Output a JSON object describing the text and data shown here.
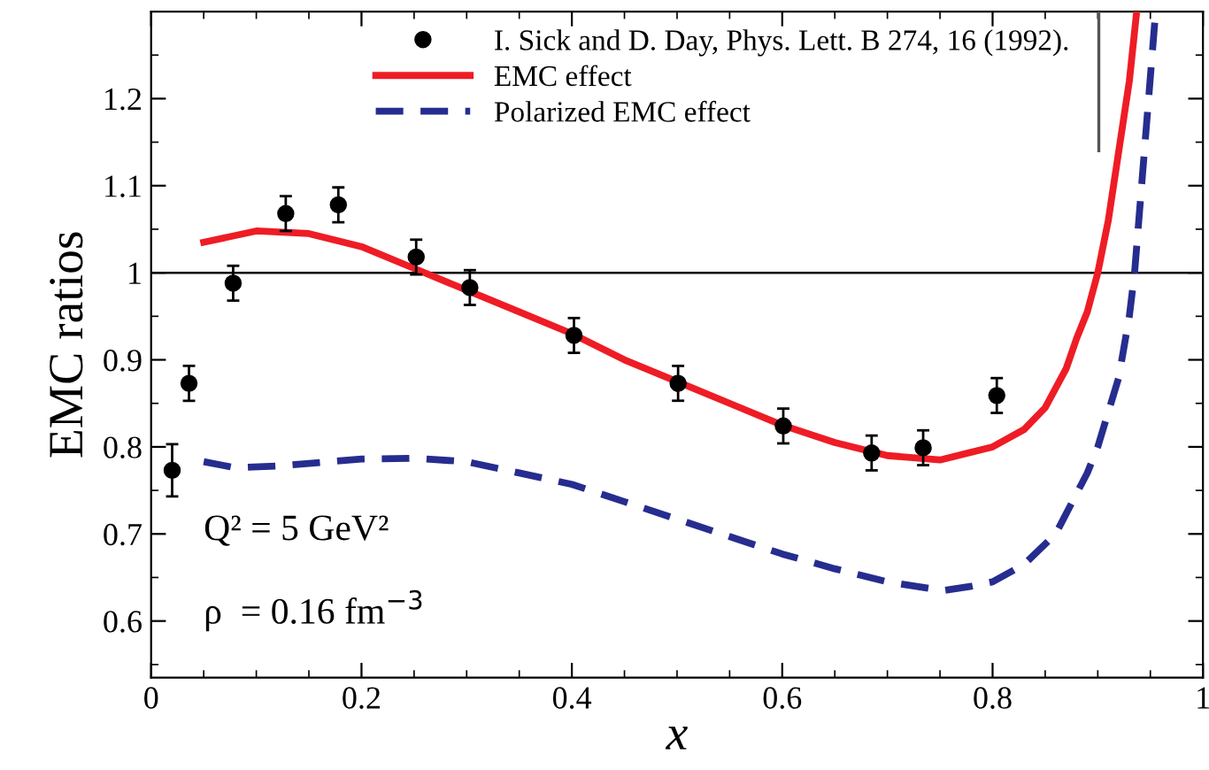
{
  "chart_data": {
    "type": "line",
    "xlabel": "x",
    "ylabel": "EMC ratios",
    "xlim": [
      0,
      1
    ],
    "ylim": [
      0.535,
      1.3
    ],
    "xticks": [
      0,
      0.2,
      0.4,
      0.6,
      0.8,
      1
    ],
    "yticks": [
      0.6,
      0.7,
      0.8,
      0.9,
      1,
      1.1,
      1.2
    ],
    "grid": false,
    "legend": "top right",
    "ref_lines": [
      {
        "axis": "y",
        "value": 1,
        "color": "#000000",
        "line_style": "solid"
      }
    ],
    "annotations": [
      "Q² = 5 GeV²",
      "ρ  = 0.16 fm$^{−3}$"
    ],
    "series": [
      {
        "name": "I. Sick and D. Day, Phys. Lett. B 274, 16 (1992).",
        "type": "scatter",
        "marker": "circle",
        "color": "#000000",
        "x": [
          0.02,
          0.036,
          0.078,
          0.128,
          0.178,
          0.252,
          0.303,
          0.402,
          0.501,
          0.601,
          0.685,
          0.734,
          0.804
        ],
        "values": [
          0.773,
          0.873,
          0.988,
          1.068,
          1.078,
          1.018,
          0.983,
          0.928,
          0.873,
          0.824,
          0.793,
          0.799,
          0.859
        ],
        "errors": [
          0.03,
          0.02,
          0.02,
          0.02,
          0.02,
          0.02,
          0.02,
          0.02,
          0.02,
          0.02,
          0.02,
          0.02,
          0.02
        ]
      },
      {
        "name": "EMC effect",
        "line_style": "solid",
        "color": "#ee1c25",
        "x": [
          0.05,
          0.1,
          0.15,
          0.2,
          0.25,
          0.3,
          0.35,
          0.4,
          0.45,
          0.5,
          0.55,
          0.6,
          0.65,
          0.7,
          0.75,
          0.8,
          0.83,
          0.85,
          0.87,
          0.88,
          0.89,
          0.9,
          0.91,
          0.92,
          0.93,
          0.937
        ],
        "values": [
          1.035,
          1.048,
          1.045,
          1.03,
          1.005,
          0.98,
          0.955,
          0.93,
          0.9,
          0.875,
          0.85,
          0.825,
          0.805,
          0.79,
          0.785,
          0.8,
          0.82,
          0.845,
          0.89,
          0.925,
          0.955,
          1.0,
          1.06,
          1.14,
          1.22,
          1.3
        ]
      },
      {
        "name": "Polarized EMC effect",
        "line_style": "dashed",
        "color": "#262d8f",
        "x": [
          0.05,
          0.08,
          0.12,
          0.2,
          0.25,
          0.3,
          0.35,
          0.4,
          0.45,
          0.5,
          0.55,
          0.6,
          0.65,
          0.7,
          0.753,
          0.78,
          0.8,
          0.83,
          0.86,
          0.89,
          0.9,
          0.91,
          0.92,
          0.93,
          0.935,
          0.945,
          0.955
        ],
        "values": [
          0.783,
          0.776,
          0.778,
          0.786,
          0.787,
          0.783,
          0.77,
          0.757,
          0.737,
          0.717,
          0.697,
          0.677,
          0.66,
          0.645,
          0.635,
          0.64,
          0.645,
          0.665,
          0.7,
          0.77,
          0.8,
          0.84,
          0.88,
          0.95,
          1.0,
          1.15,
          1.3
        ]
      },
      {
        "line_style": "solid",
        "color": "#555555",
        "x": [
          0.901,
          0.901
        ],
        "values": [
          1.14,
          1.3
        ]
      }
    ]
  }
}
